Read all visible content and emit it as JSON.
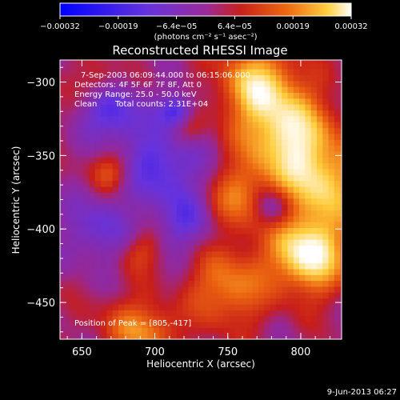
{
  "chart_data": {
    "type": "heatmap",
    "title": "Reconstructed RHESSI Image",
    "xlabel": "Heliocentric X (arcsec)",
    "ylabel": "Heliocentric Y (arcsec)",
    "xlim": [
      635,
      828
    ],
    "ylim": [
      -475,
      -285
    ],
    "x_ticks": [
      "650",
      "700",
      "750",
      "800"
    ],
    "x_tick_values": [
      650,
      700,
      750,
      800
    ],
    "y_ticks": [
      "−300",
      "−350",
      "−400",
      "−450"
    ],
    "y_tick_values": [
      -300,
      -350,
      -400,
      -450
    ],
    "colorbar": {
      "ticks": [
        "−0.00032",
        "−0.00019",
        "−6.4e−05",
        "6.4e−05",
        "0.00019",
        "0.00032"
      ],
      "units": "(photons cm⁻² s⁻¹ asec⁻²)",
      "range": [
        -0.00032,
        0.00032
      ],
      "colors": [
        "#0000ff",
        "#7733cc",
        "#b81818",
        "#e06010",
        "#ffd040",
        "#ffffff"
      ]
    },
    "annotations": {
      "time_range": "7-Sep-2003 06:09:44.000 to 06:15:06.000",
      "detectors": "Detectors: 4F 5F 6F 7F 8F, Att 0",
      "energy": "Energy Range: 25.0 - 50.0 keV",
      "algorithm": "Clean",
      "counts": "Total counts: 2.31E+04",
      "peak": "Position of Peak = [805,-417]"
    },
    "peak_position": [
      805,
      -417
    ],
    "sources": [
      {
        "x": 805,
        "y": -417,
        "a": 1.0,
        "s": 18
      },
      {
        "x": 790,
        "y": -335,
        "a": 0.85,
        "s": 22
      },
      {
        "x": 770,
        "y": -300,
        "a": 0.7,
        "s": 18
      },
      {
        "x": 815,
        "y": -370,
        "a": 0.7,
        "s": 20
      },
      {
        "x": 750,
        "y": -440,
        "a": 0.55,
        "s": 18
      },
      {
        "x": 760,
        "y": -380,
        "a": 0.5,
        "s": 16
      },
      {
        "x": 680,
        "y": -465,
        "a": 0.35,
        "s": 14
      },
      {
        "x": 720,
        "y": -330,
        "a": 0.35,
        "s": 10
      },
      {
        "x": 670,
        "y": -360,
        "a": 0.4,
        "s": 10
      },
      {
        "x": 700,
        "y": -470,
        "a": 0.4,
        "s": 12
      },
      {
        "x": 660,
        "y": -300,
        "a": 0.3,
        "s": 10
      },
      {
        "x": 690,
        "y": -415,
        "a": 0.3,
        "s": 10
      },
      {
        "x": 705,
        "y": -355,
        "a": -0.55,
        "s": 20
      },
      {
        "x": 715,
        "y": -320,
        "a": -0.7,
        "s": 8
      },
      {
        "x": 670,
        "y": -320,
        "a": -0.55,
        "s": 14
      },
      {
        "x": 660,
        "y": -400,
        "a": -0.4,
        "s": 16
      },
      {
        "x": 780,
        "y": -385,
        "a": -0.55,
        "s": 10
      },
      {
        "x": 720,
        "y": -395,
        "a": -0.4,
        "s": 14
      }
    ],
    "timestamp": "9-Jun-2013 06:27"
  }
}
